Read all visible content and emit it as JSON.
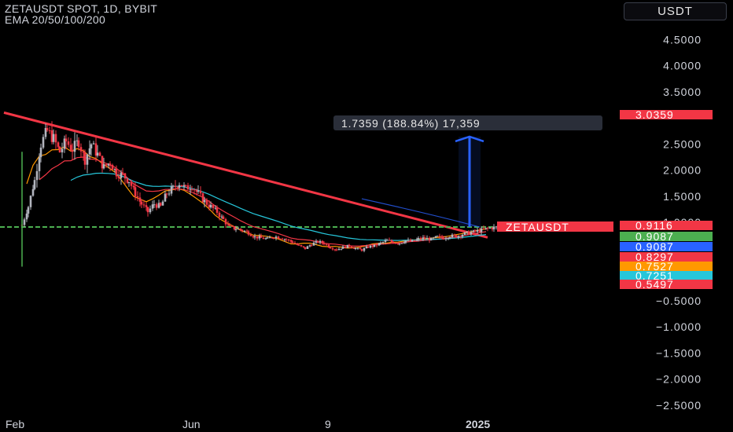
{
  "header": {
    "title": "ZETAUSDT SPOT, 1D, BYBIT",
    "indicator": "EMA 20/50/100/200"
  },
  "currency_button": {
    "label": "USDT"
  },
  "measure": {
    "label": "1.7359 (188.84%) 17,359"
  },
  "symbol_badge": {
    "label": "ZETAUSDT",
    "color": "#f23645"
  },
  "colors": {
    "background": "#000000",
    "axis_text": "#d1d4dc",
    "trendline": "#f23645",
    "support": "#4caf50",
    "arrow": "#2962ff",
    "up_candle": "#b2b5be",
    "down_candle": "#f23645"
  },
  "chart_data": {
    "type": "candlestick",
    "symbol": "ZETAUSDT",
    "exchange": "BYBIT",
    "interval": "1D",
    "x_tick_labels": [
      "Feb",
      "Jun",
      "9",
      "2025"
    ],
    "y_tick_labels": [
      "4.5000",
      "4.0000",
      "3.5000",
      "2.5000",
      "2.0000",
      "1.5000",
      "1.0000",
      "−0.5000",
      "−1.0000",
      "−1.5000",
      "−2.0000",
      "−2.5000"
    ],
    "y_ticks": [
      4.5,
      4.0,
      3.5,
      2.5,
      2.0,
      1.5,
      1.0,
      -0.5,
      -1.0,
      -1.5,
      -2.0,
      -2.5
    ],
    "ylim": [
      -2.6,
      4.85
    ],
    "x_range_days": [
      0,
      372
    ],
    "close_approx": [
      [
        0,
        0.95
      ],
      [
        4,
        1.3
      ],
      [
        8,
        1.8
      ],
      [
        12,
        2.5
      ],
      [
        16,
        2.75
      ],
      [
        20,
        2.6
      ],
      [
        24,
        2.35
      ],
      [
        28,
        2.55
      ],
      [
        32,
        2.4
      ],
      [
        36,
        2.55
      ],
      [
        40,
        2.2
      ],
      [
        44,
        2.5
      ],
      [
        48,
        2.3
      ],
      [
        52,
        2.05
      ],
      [
        56,
        2.15
      ],
      [
        60,
        1.95
      ],
      [
        64,
        1.9
      ],
      [
        68,
        1.8
      ],
      [
        72,
        1.55
      ],
      [
        76,
        1.35
      ],
      [
        80,
        1.2
      ],
      [
        84,
        1.35
      ],
      [
        88,
        1.3
      ],
      [
        92,
        1.55
      ],
      [
        96,
        1.65
      ],
      [
        100,
        1.75
      ],
      [
        104,
        1.65
      ],
      [
        108,
        1.7
      ],
      [
        112,
        1.55
      ],
      [
        116,
        1.4
      ],
      [
        120,
        1.3
      ],
      [
        124,
        1.2
      ],
      [
        128,
        1.05
      ],
      [
        132,
        0.9
      ],
      [
        136,
        0.88
      ],
      [
        140,
        0.85
      ],
      [
        144,
        0.8
      ],
      [
        148,
        0.72
      ],
      [
        152,
        0.7
      ],
      [
        156,
        0.68
      ],
      [
        160,
        0.73
      ],
      [
        164,
        0.71
      ],
      [
        168,
        0.67
      ],
      [
        172,
        0.62
      ],
      [
        176,
        0.55
      ],
      [
        180,
        0.5
      ],
      [
        184,
        0.58
      ],
      [
        188,
        0.63
      ],
      [
        192,
        0.6
      ],
      [
        196,
        0.52
      ],
      [
        200,
        0.48
      ],
      [
        204,
        0.52
      ],
      [
        208,
        0.55
      ],
      [
        212,
        0.5
      ],
      [
        216,
        0.47
      ],
      [
        220,
        0.53
      ],
      [
        224,
        0.55
      ],
      [
        228,
        0.6
      ],
      [
        232,
        0.65
      ],
      [
        236,
        0.62
      ],
      [
        240,
        0.6
      ],
      [
        244,
        0.65
      ],
      [
        248,
        0.63
      ],
      [
        252,
        0.68
      ],
      [
        256,
        0.7
      ],
      [
        260,
        0.67
      ],
      [
        264,
        0.72
      ],
      [
        268,
        0.7
      ],
      [
        272,
        0.74
      ],
      [
        276,
        0.73
      ],
      [
        280,
        0.77
      ],
      [
        284,
        0.8
      ],
      [
        288,
        0.82
      ],
      [
        292,
        0.85
      ],
      [
        296,
        0.88
      ],
      [
        300,
        0.9
      ],
      [
        304,
        0.91
      ]
    ],
    "ema_last_values": [
      {
        "name": "EMA 20",
        "value": 0.9087,
        "color": "#4caf50"
      },
      {
        "name": "EMA 50",
        "value": 0.9087,
        "color": "#2962ff"
      },
      {
        "name": "EMA 100",
        "value": 0.8297,
        "color": "#f23645"
      },
      {
        "name": "EMA 200",
        "value": 0.7527,
        "color": "#ff9800"
      }
    ],
    "price_labels": [
      {
        "value": 3.0359,
        "text": "3.0359",
        "color": "#f23645"
      },
      {
        "value": 0.9116,
        "text": "0.9116",
        "color": "#f23645"
      },
      {
        "value": 0.9087,
        "text": "0.9087",
        "color": "#4caf50"
      },
      {
        "value": 0.9087,
        "text": "0.9087",
        "color": "#2962ff"
      },
      {
        "value": 0.8297,
        "text": "0.8297",
        "color": "#f23645"
      },
      {
        "value": 0.7527,
        "text": "0.7527",
        "color": "#ff9800"
      },
      {
        "value": 0.7251,
        "text": "0.7251",
        "color": "#26c6da"
      },
      {
        "value": 0.5497,
        "text": "0.5497",
        "color": "#f23645"
      }
    ],
    "annotations": {
      "trendline": {
        "from": [
          0,
          3.1
        ],
        "to": [
          305,
          0.71
        ]
      },
      "support_level": 0.91,
      "projection": {
        "from": 0.91,
        "to": 2.64,
        "change": 1.7359,
        "percent": 188.84
      }
    },
    "grid": false
  }
}
